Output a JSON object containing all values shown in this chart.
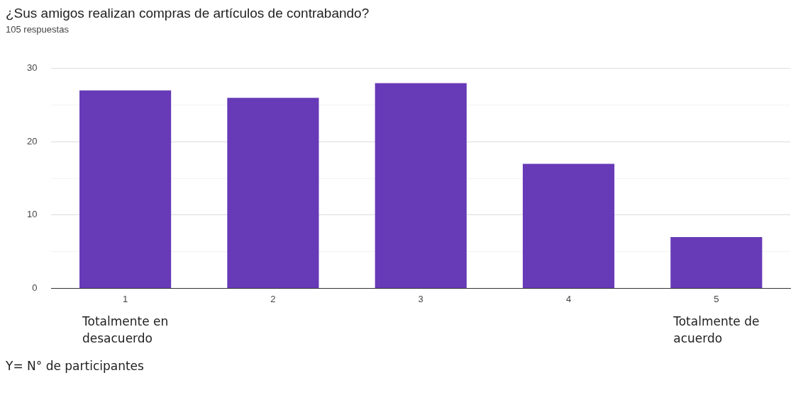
{
  "chart_data": {
    "type": "bar",
    "title": "¿Sus amigos realizan compras de artículos de contrabando?",
    "subtitle": "105 respuestas",
    "categories": [
      "1",
      "2",
      "3",
      "4",
      "5"
    ],
    "values": [
      27,
      26,
      28,
      17,
      7
    ],
    "color": "#673ab7",
    "ylim": [
      0,
      30
    ],
    "yticks": [
      0,
      {
        "value": 5,
        "label": null
      },
      10,
      {
        "value": 15,
        "label": null
      },
      20,
      {
        "value": 25,
        "label": null
      },
      30
    ],
    "grid": "y",
    "legend": false,
    "annotations": [
      "Totalmente en desacuerdo",
      "Totalmente de acuerdo",
      "Y= N° de participantes"
    ]
  }
}
